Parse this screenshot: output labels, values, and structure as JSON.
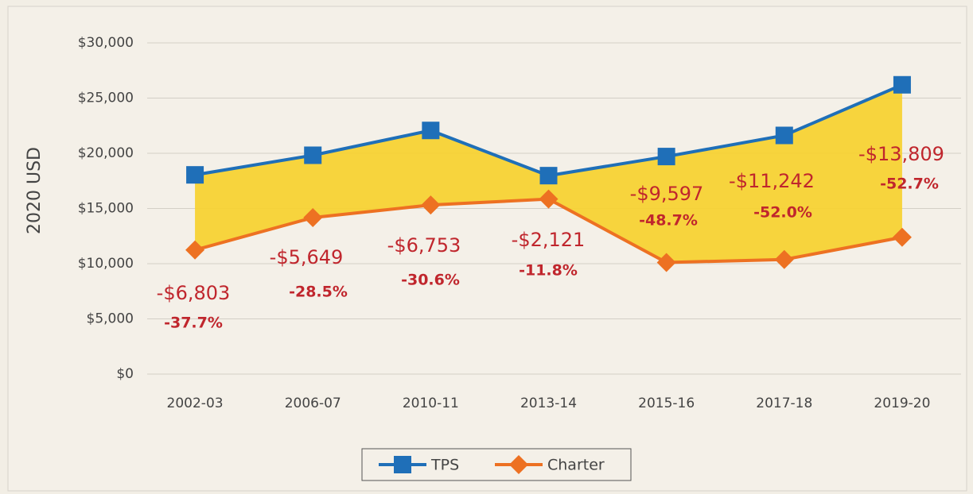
{
  "chart_data": {
    "type": "line",
    "y_label": "2020 USD",
    "categories": [
      "2002-03",
      "2006-07",
      "2010-11",
      "2013-14",
      "2015-16",
      "2017-18",
      "2019-20"
    ],
    "series": [
      {
        "name": "TPS",
        "color": "#1f6fb8",
        "values": [
          18045,
          19821,
          22069,
          17975,
          19706,
          21619,
          26203
        ]
      },
      {
        "name": "Charter",
        "color": "#ed7122",
        "values": [
          11242,
          14172,
          15316,
          15854,
          10109,
          10377,
          12394
        ]
      }
    ],
    "fill_between": "#f7d02a",
    "gap_labels": [
      "-$6,803",
      "-$5,649",
      "-$6,753",
      "-$2,121",
      "-$9,597",
      "-$11,242",
      "-$13,809"
    ],
    "gap_percent_labels": [
      "-37.7%",
      "-28.5%",
      "-30.6%",
      "-11.8%",
      "-48.7%",
      "-52.0%",
      "-52.7%"
    ],
    "ylim": [
      0,
      30000
    ],
    "yticks": [
      {
        "value": 0,
        "label": "$0"
      },
      {
        "value": 5000,
        "label": "$5,000"
      },
      {
        "value": 10000,
        "label": "$10,000"
      },
      {
        "value": 15000,
        "label": "$15,000"
      },
      {
        "value": 20000,
        "label": "$20,000"
      },
      {
        "value": 25000,
        "label": "$25,000"
      },
      {
        "value": 30000,
        "label": "$30,000"
      }
    ],
    "grid": true,
    "legend": "bottom"
  }
}
